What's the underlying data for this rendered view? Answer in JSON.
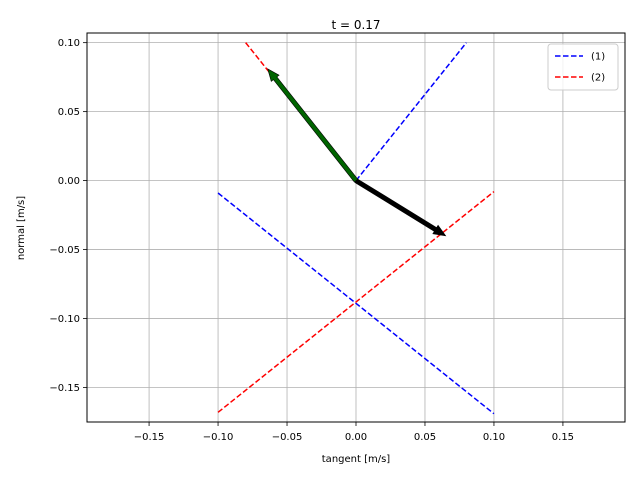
{
  "chart_data": {
    "type": "line",
    "title": "t = 0.17",
    "xlabel": "tangent [m/s]",
    "ylabel": "normal [m/s]",
    "xlim": [
      -0.195,
      0.195
    ],
    "ylim": [
      -0.175,
      0.107
    ],
    "xticks": [
      -0.15,
      -0.1,
      -0.05,
      0.0,
      0.05,
      0.1,
      0.15
    ],
    "xtick_labels": [
      "−0.15",
      "−0.10",
      "−0.05",
      "0.00",
      "0.05",
      "0.10",
      "0.15"
    ],
    "yticks": [
      0.1,
      0.05,
      0.0,
      -0.05,
      -0.1,
      -0.15
    ],
    "ytick_labels": [
      "0.10",
      "0.05",
      "0.00",
      "−0.05",
      "−0.10",
      "−0.15"
    ],
    "grid": true,
    "legend_position": "top-right",
    "series": [
      {
        "name": "(1)",
        "color": "#0000ff",
        "style": "dashed",
        "segments": [
          [
            [
              0.0,
              0.0
            ],
            [
              0.08,
              0.1
            ]
          ],
          [
            [
              -0.1,
              -0.009
            ],
            [
              0.1,
              -0.169
            ]
          ]
        ]
      },
      {
        "name": "(2)",
        "color": "#ff0000",
        "style": "dashed",
        "segments": [
          [
            [
              -0.08,
              0.1
            ],
            [
              0.0,
              0.0
            ]
          ],
          [
            [
              -0.1,
              -0.168
            ],
            [
              0.1,
              -0.008
            ]
          ]
        ]
      }
    ],
    "arrows": [
      {
        "color": "#000000",
        "from": [
          0.0,
          0.0
        ],
        "to": [
          0.065,
          -0.04
        ]
      },
      {
        "color": "#006400",
        "from": [
          0.0,
          0.0
        ],
        "to": [
          -0.064,
          0.081
        ]
      }
    ]
  }
}
